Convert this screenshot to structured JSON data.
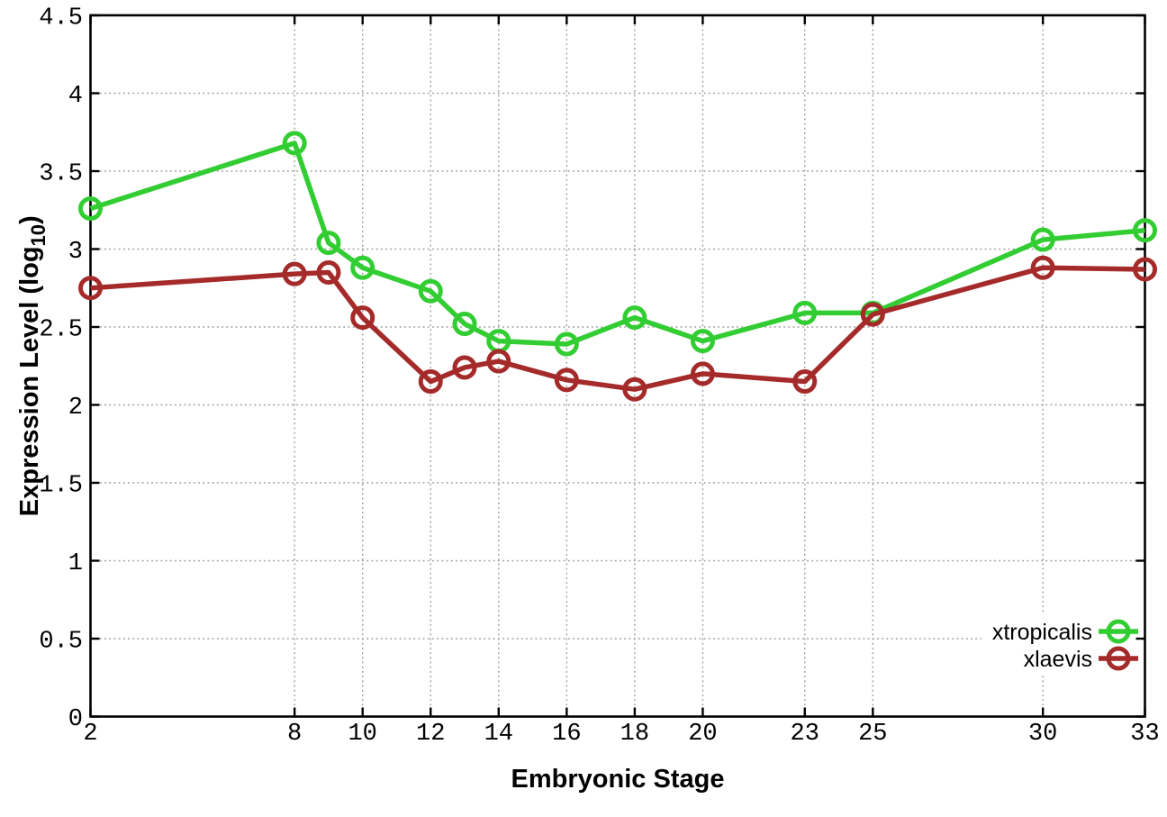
{
  "chart_data": {
    "type": "line",
    "title": "",
    "xlabel": "Embryonic Stage",
    "ylabel": "Expression Level (log10)",
    "ylabel_parts": {
      "prefix": "Expression Level (log",
      "subscript": "10",
      "suffix": ")"
    },
    "x": [
      2,
      8,
      9,
      10,
      12,
      13,
      14,
      16,
      18,
      20,
      23,
      25,
      30,
      33
    ],
    "series": [
      {
        "name": "xtropicalis",
        "color": "#32cd32",
        "marker": "open-circle",
        "values": [
          3.26,
          3.68,
          3.04,
          2.88,
          2.73,
          2.52,
          2.41,
          2.39,
          2.56,
          2.41,
          2.59,
          2.59,
          3.06,
          3.12
        ]
      },
      {
        "name": "xlaevis",
        "color": "#a52a2a",
        "marker": "open-circle",
        "values": [
          2.75,
          2.84,
          2.85,
          2.56,
          2.15,
          2.24,
          2.28,
          2.16,
          2.1,
          2.2,
          2.15,
          2.58,
          2.88,
          2.87
        ]
      }
    ],
    "xticks": [
      2,
      8,
      10,
      12,
      14,
      16,
      18,
      20,
      23,
      25,
      30,
      33
    ],
    "yticks": [
      0,
      0.5,
      1,
      1.5,
      2,
      2.5,
      3,
      3.5,
      4,
      4.5
    ],
    "xlim": [
      2,
      33
    ],
    "ylim": [
      0,
      4.5
    ],
    "grid": "dotted",
    "legend_position": "bottom-right",
    "background_color": "#ffffff",
    "grid_color": "#999999",
    "axis_color": "#000000"
  }
}
